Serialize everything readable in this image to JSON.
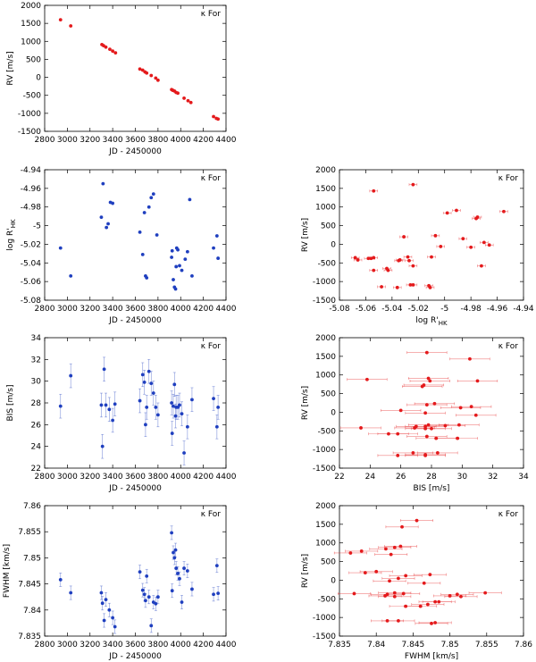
{
  "chart_data": [
    {
      "id": "p1",
      "type": "scatter",
      "title": "κ For",
      "xlabel": "JD - 2450000",
      "ylabel": "RV [m/s]",
      "xlim": [
        2800,
        4400
      ],
      "ylim": [
        -1500,
        2000
      ],
      "xticks": [
        2800,
        3000,
        3200,
        3400,
        3600,
        3800,
        4000,
        4200,
        4400
      ],
      "yticks": [
        -1500,
        -1000,
        -500,
        0,
        500,
        1000,
        1500,
        2000
      ],
      "marker_color": "#e41a1c",
      "error_bars": "none",
      "x": [
        2940,
        3030,
        3305,
        3320,
        3340,
        3375,
        3400,
        3425,
        3640,
        3665,
        3685,
        3700,
        3740,
        3780,
        3800,
        3920,
        3930,
        3945,
        3960,
        3975,
        4030,
        4065,
        4090,
        4290,
        4315,
        4330
      ],
      "y": [
        1600,
        1430,
        910,
        880,
        840,
        780,
        730,
        680,
        230,
        200,
        150,
        120,
        50,
        -20,
        -80,
        -340,
        -360,
        -380,
        -420,
        -440,
        -580,
        -650,
        -700,
        -1090,
        -1140,
        -1160
      ]
    },
    {
      "id": "p2",
      "type": "scatter",
      "title": "κ For",
      "xlabel": "JD - 2450000",
      "ylabel": "log R'HK",
      "xlim": [
        2800,
        4400
      ],
      "ylim": [
        -5.08,
        -4.94
      ],
      "xticks": [
        2800,
        3000,
        3200,
        3400,
        3600,
        3800,
        4000,
        4200,
        4400
      ],
      "yticks": [
        -5.08,
        -5.06,
        -5.04,
        -5.02,
        -5,
        -4.98,
        -4.96,
        -4.94
      ],
      "marker_color": "#1f3fbf",
      "error_bars": "none",
      "x": [
        2940,
        3030,
        3300,
        3315,
        3345,
        3360,
        3380,
        3400,
        3640,
        3665,
        3680,
        3690,
        3700,
        3720,
        3740,
        3760,
        3790,
        3920,
        3925,
        3935,
        3945,
        3955,
        3960,
        3965,
        3975,
        3990,
        4010,
        4040,
        4060,
        4080,
        4100,
        4290,
        4320,
        4330
      ],
      "y": [
        -5.024,
        -5.054,
        -4.991,
        -4.955,
        -5.002,
        -4.998,
        -4.975,
        -4.976,
        -5.007,
        -5.031,
        -4.986,
        -5.054,
        -5.056,
        -4.98,
        -4.97,
        -4.966,
        -5.01,
        -5.034,
        -5.027,
        -5.058,
        -5.066,
        -5.068,
        -5.044,
        -5.024,
        -5.026,
        -5.043,
        -5.048,
        -5.036,
        -5.028,
        -4.972,
        -5.054,
        -5.024,
        -5.011,
        -5.035
      ]
    },
    {
      "id": "p3",
      "type": "scatter",
      "title": "κ For",
      "xlabel": "log R'HK",
      "ylabel": "RV [m/s]",
      "xlim": [
        -5.08,
        -4.94
      ],
      "ylim": [
        -1500,
        2000
      ],
      "xticks": [
        -5.08,
        -5.06,
        -5.04,
        -5.02,
        -5,
        -4.98,
        -4.96,
        -4.94
      ],
      "yticks": [
        -1500,
        -1000,
        -500,
        0,
        500,
        1000,
        1500,
        2000
      ],
      "marker_color": "#e41a1c",
      "error_bars": "x",
      "x": [
        -5.054,
        -5.024,
        -5.012,
        -5.003,
        -4.991,
        -4.998,
        -4.976,
        -4.975,
        -4.955,
        -5.007,
        -5.031,
        -4.986,
        -4.97,
        -4.966,
        -4.98,
        -5.01,
        -5.054,
        -5.056,
        -5.034,
        -5.027,
        -5.024,
        -5.044,
        -5.043,
        -5.026,
        -5.048,
        -5.036,
        -5.028,
        -5.058,
        -5.066,
        -5.068,
        -5.054,
        -5.024,
        -5.011,
        -5.035,
        -4.972
      ],
      "y": [
        1430,
        1600,
        -1110,
        -60,
        910,
        840,
        690,
        730,
        880,
        230,
        200,
        150,
        50,
        -20,
        -80,
        -340,
        -360,
        -380,
        -420,
        -440,
        -580,
        -650,
        -700,
        -1090,
        -1140,
        -1160,
        -340,
        -380,
        -420,
        -360,
        -700,
        -1090,
        -1160,
        -440,
        -580
      ],
      "xerr": 0.003
    },
    {
      "id": "p4",
      "type": "scatter",
      "title": "κ For",
      "xlabel": "JD - 2450000",
      "ylabel": "BIS [m/s]",
      "xlim": [
        2800,
        4400
      ],
      "ylim": [
        22,
        34
      ],
      "xticks": [
        2800,
        3000,
        3200,
        3400,
        3600,
        3800,
        4000,
        4200,
        4400
      ],
      "yticks": [
        22,
        24,
        26,
        28,
        30,
        32,
        34
      ],
      "marker_color": "#1f3fbf",
      "error_bars": "y",
      "x": [
        2940,
        3030,
        3300,
        3310,
        3325,
        3340,
        3370,
        3400,
        3420,
        3640,
        3665,
        3680,
        3690,
        3700,
        3720,
        3740,
        3760,
        3780,
        3800,
        3920,
        3925,
        3935,
        3945,
        3955,
        3960,
        3975,
        3990,
        4010,
        4030,
        4060,
        4100,
        4290,
        4320,
        4330
      ],
      "y": [
        27.7,
        30.5,
        27.8,
        24.0,
        31.1,
        27.8,
        27.4,
        26.4,
        27.9,
        28.2,
        30.6,
        29.9,
        26.0,
        27.6,
        30.9,
        29.8,
        28.9,
        27.6,
        26.9,
        28.0,
        25.2,
        27.7,
        29.7,
        26.8,
        27.6,
        27.6,
        27.8,
        27.0,
        23.4,
        25.8,
        28.3,
        28.4,
        25.8,
        27.6
      ],
      "yerr": 1.1
    },
    {
      "id": "p5",
      "type": "scatter",
      "title": "κ For",
      "xlabel": "BIS [m/s]",
      "ylabel": "RV [m/s]",
      "xlim": [
        22,
        34
      ],
      "ylim": [
        -1500,
        2000
      ],
      "xticks": [
        22,
        24,
        26,
        28,
        30,
        32,
        34
      ],
      "yticks": [
        -1500,
        -1000,
        -500,
        0,
        500,
        1000,
        1500,
        2000
      ],
      "marker_color": "#e41a1c",
      "error_bars": "x",
      "x": [
        27.7,
        30.5,
        23.8,
        27.8,
        27.9,
        27.5,
        27.4,
        31.0,
        28.2,
        27.7,
        30.6,
        29.9,
        26.0,
        27.6,
        30.9,
        29.8,
        28.9,
        27.6,
        26.9,
        28.0,
        25.2,
        27.7,
        29.7,
        26.8,
        27.6,
        27.6,
        27.8,
        27.0,
        23.4,
        25.8,
        28.3,
        28.4,
        25.8,
        27.6
      ],
      "y": [
        1600,
        1430,
        880,
        910,
        840,
        730,
        690,
        840,
        230,
        200,
        150,
        120,
        50,
        -20,
        -80,
        -340,
        -360,
        -380,
        -420,
        -440,
        -580,
        -650,
        -700,
        -1090,
        -1140,
        -1160,
        -340,
        -380,
        -420,
        -580,
        -700,
        -1090,
        -1160,
        -440
      ],
      "xerr": 1.3
    },
    {
      "id": "p6",
      "type": "scatter",
      "title": "κ For",
      "xlabel": "JD - 2450000",
      "ylabel": "FWHM [km/s]",
      "xlim": [
        2800,
        4400
      ],
      "ylim": [
        7.835,
        7.86
      ],
      "xticks": [
        2800,
        3000,
        3200,
        3400,
        3600,
        3800,
        4000,
        4200,
        4400
      ],
      "yticks": [
        7.835,
        7.84,
        7.845,
        7.85,
        7.855,
        7.86
      ],
      "marker_color": "#1f3fbf",
      "error_bars": "y",
      "x": [
        2940,
        3030,
        3300,
        3310,
        3325,
        3340,
        3370,
        3400,
        3420,
        3640,
        3665,
        3680,
        3690,
        3700,
        3720,
        3740,
        3760,
        3780,
        3800,
        3920,
        3925,
        3935,
        3945,
        3955,
        3960,
        3975,
        3990,
        4010,
        4030,
        4060,
        4100,
        4290,
        4320,
        4330
      ],
      "y": [
        7.8458,
        7.8433,
        7.8433,
        7.8413,
        7.838,
        7.842,
        7.84,
        7.8385,
        7.8368,
        7.8473,
        7.8438,
        7.843,
        7.8418,
        7.8465,
        7.8425,
        7.837,
        7.8415,
        7.8412,
        7.8425,
        7.8548,
        7.8437,
        7.851,
        7.85,
        7.8515,
        7.848,
        7.847,
        7.846,
        7.8415,
        7.848,
        7.8475,
        7.844,
        7.843,
        7.8485,
        7.8432
      ],
      "yerr": 0.0013
    },
    {
      "id": "p7",
      "type": "scatter",
      "title": "κ For",
      "xlabel": "FWHM [km/s]",
      "ylabel": "RV [m/s]",
      "xlim": [
        7.835,
        7.86
      ],
      "ylim": [
        -1500,
        2000
      ],
      "xticks": [
        7.835,
        7.84,
        7.845,
        7.85,
        7.855,
        7.86
      ],
      "yticks": [
        -1500,
        -1000,
        -500,
        0,
        500,
        1000,
        1500,
        2000
      ],
      "marker_color": "#e41a1c",
      "error_bars": "x",
      "x": [
        7.8455,
        7.8435,
        7.8433,
        7.8425,
        7.8413,
        7.838,
        7.8365,
        7.842,
        7.84,
        7.8385,
        7.8473,
        7.844,
        7.843,
        7.8418,
        7.8465,
        7.8425,
        7.837,
        7.8415,
        7.8412,
        7.8425,
        7.8548,
        7.8437,
        7.851,
        7.85,
        7.8515,
        7.848,
        7.847,
        7.846,
        7.8415,
        7.848,
        7.8475,
        7.844,
        7.843,
        7.8485
      ],
      "y": [
        1600,
        1430,
        910,
        880,
        840,
        780,
        730,
        690,
        230,
        200,
        150,
        120,
        50,
        -20,
        -80,
        -340,
        -360,
        -380,
        -420,
        -440,
        -340,
        -360,
        -380,
        -420,
        -440,
        -580,
        -650,
        -700,
        -1090,
        -1140,
        -1160,
        -700,
        -1090,
        -580
      ],
      "xerr": 0.0022
    }
  ]
}
